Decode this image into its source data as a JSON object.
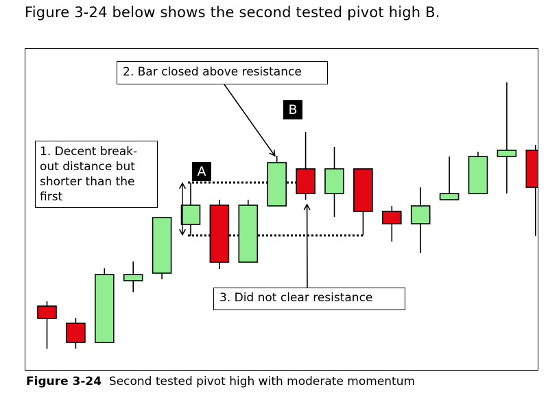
{
  "intro_text": "Figure 3-24 below shows the second tested pivot high B.",
  "caption": {
    "label": "Figure 3-24",
    "text": "Second tested pivot high with moderate momentum"
  },
  "annotations": {
    "note1_lines": [
      "1. Decent break-",
      "out distance but",
      "shorter than the",
      "first"
    ],
    "note2": "2. Bar closed above resistance",
    "note3": "3. Did not clear resistance",
    "pivot_a": "A",
    "pivot_b": "B"
  },
  "colors": {
    "bull": "#90EE90",
    "bear": "#E30613",
    "outline": "#000000"
  },
  "chart_data": {
    "type": "candlestick",
    "title": "",
    "xlabel": "",
    "ylabel": "",
    "ylim": [
      0,
      425
    ],
    "grid": false,
    "levels": {
      "pivot_A": 198,
      "pivot_B": 275
    },
    "candles": [
      {
        "open": 95,
        "close": 77,
        "high": 102,
        "low": 33
      },
      {
        "open": 70,
        "close": 42,
        "high": 78,
        "low": 33
      },
      {
        "open": 42,
        "close": 141,
        "high": 150,
        "low": 42
      },
      {
        "open": 132,
        "close": 141,
        "high": 160,
        "low": 115
      },
      {
        "open": 143,
        "close": 224,
        "high": 224,
        "low": 134
      },
      {
        "open": 214,
        "close": 242,
        "high": 275,
        "low": 197
      },
      {
        "open": 242,
        "close": 159,
        "high": 250,
        "low": 149
      },
      {
        "open": 159,
        "close": 242,
        "high": 250,
        "low": 159
      },
      {
        "open": 241,
        "close": 304,
        "high": 314,
        "low": 241
      },
      {
        "open": 295,
        "close": 259,
        "high": 349,
        "low": 250
      },
      {
        "open": 259,
        "close": 295,
        "high": 327,
        "low": 225
      },
      {
        "open": 295,
        "close": 233,
        "high": 295,
        "low": 198
      },
      {
        "open": 233,
        "close": 215,
        "high": 241,
        "low": 189
      },
      {
        "open": 215,
        "close": 241,
        "high": 268,
        "low": 172
      },
      {
        "open": 250,
        "close": 259,
        "high": 313,
        "low": 250
      },
      {
        "open": 259,
        "close": 313,
        "high": 320,
        "low": 259
      },
      {
        "open": 313,
        "close": 322,
        "high": 421,
        "low": 259
      },
      {
        "open": 322,
        "close": 268,
        "high": 330,
        "low": 197
      }
    ]
  }
}
